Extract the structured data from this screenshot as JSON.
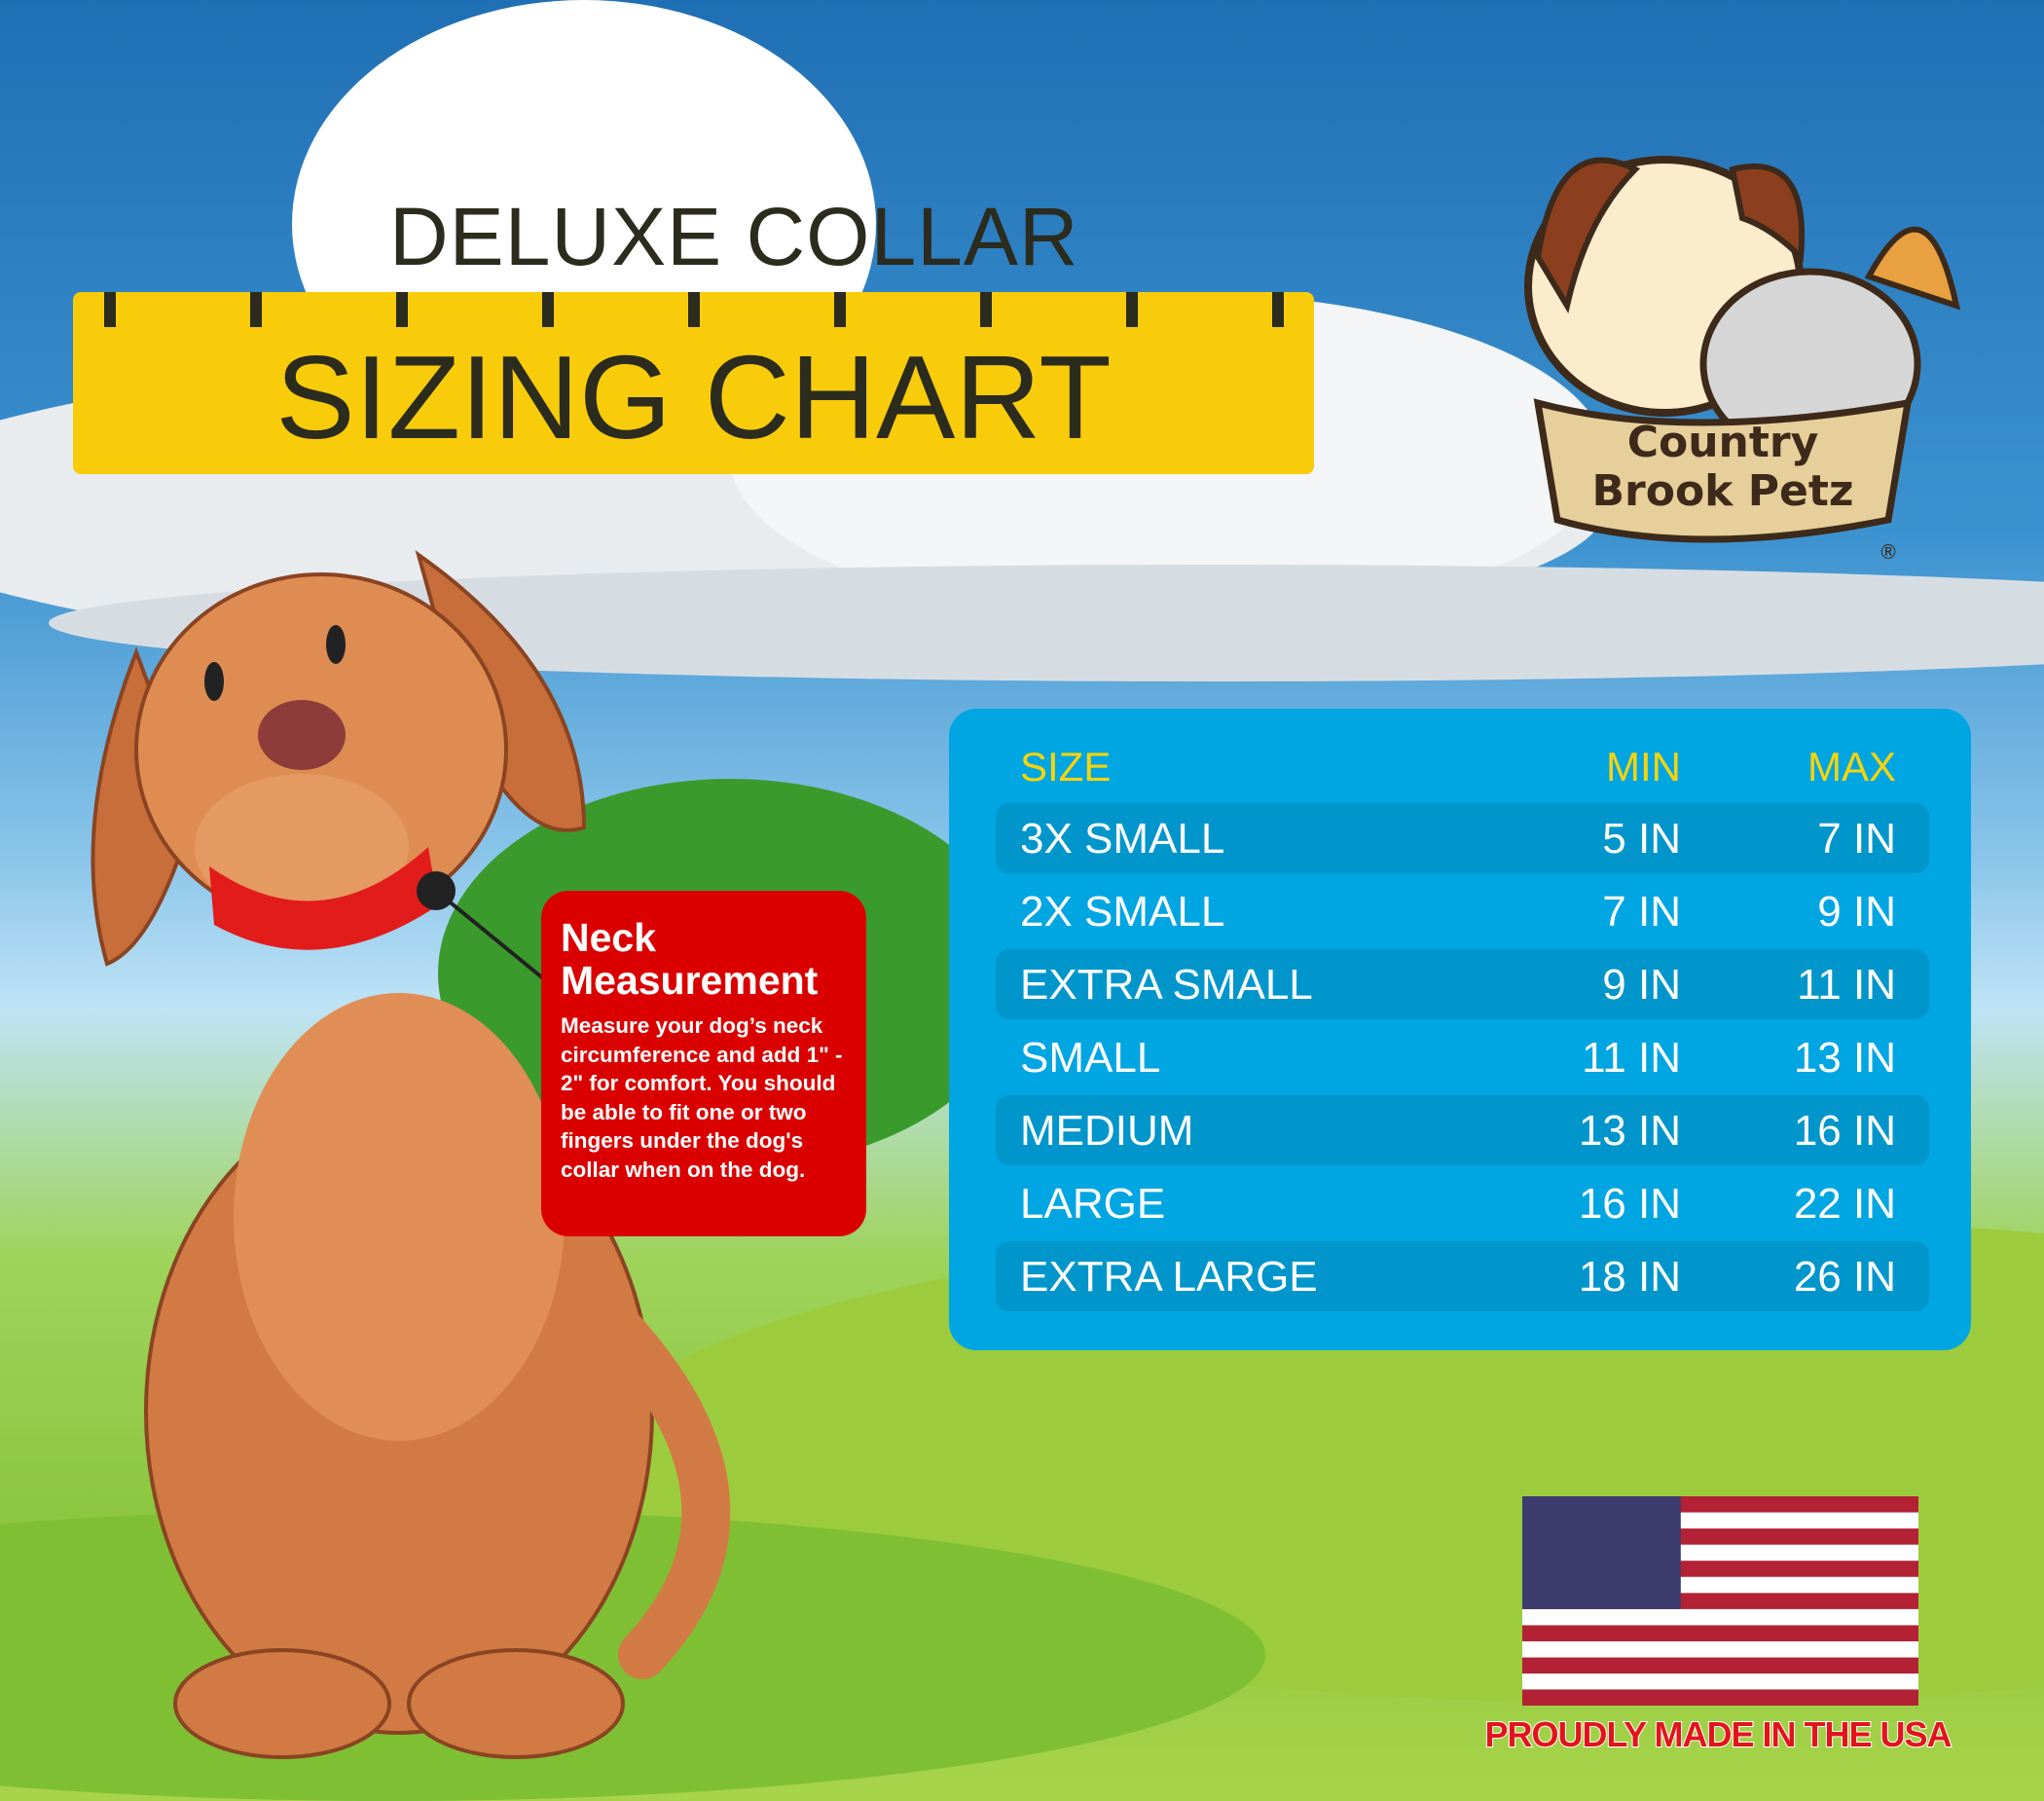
{
  "header": {
    "subtitle": "DELUXE COLLAR",
    "title": "SIZING CHART"
  },
  "logo": {
    "text": "Country Brook Petz",
    "mark": "®"
  },
  "table": {
    "headers": {
      "size": "SIZE",
      "min": "MIN",
      "max": "MAX"
    },
    "rows": [
      {
        "size": "3X SMALL",
        "min": "5 IN",
        "max": "7 IN"
      },
      {
        "size": "2X SMALL",
        "min": "7 IN",
        "max": "9 IN"
      },
      {
        "size": "EXTRA SMALL",
        "min": "9 IN",
        "max": "11 IN"
      },
      {
        "size": "SMALL",
        "min": "11 IN",
        "max": "13 IN"
      },
      {
        "size": "MEDIUM",
        "min": "13 IN",
        "max": "16 IN"
      },
      {
        "size": "LARGE",
        "min": "16 IN",
        "max": "22 IN"
      },
      {
        "size": "EXTRA LARGE",
        "min": "18 IN",
        "max": "26 IN"
      }
    ]
  },
  "note": {
    "title": "Neck Measurement",
    "body": "Measure your dog’s neck circumference and add 1\" - 2\" for comfort. You should be able to fit one or two fingers under the dog's collar when on the dog."
  },
  "footer": {
    "made_in": "PROUDLY MADE IN THE USA"
  },
  "colors": {
    "banner": "#f8cc0a",
    "table": "#00a6e2",
    "header_text": "#f7d40a",
    "note": "#da0000"
  }
}
